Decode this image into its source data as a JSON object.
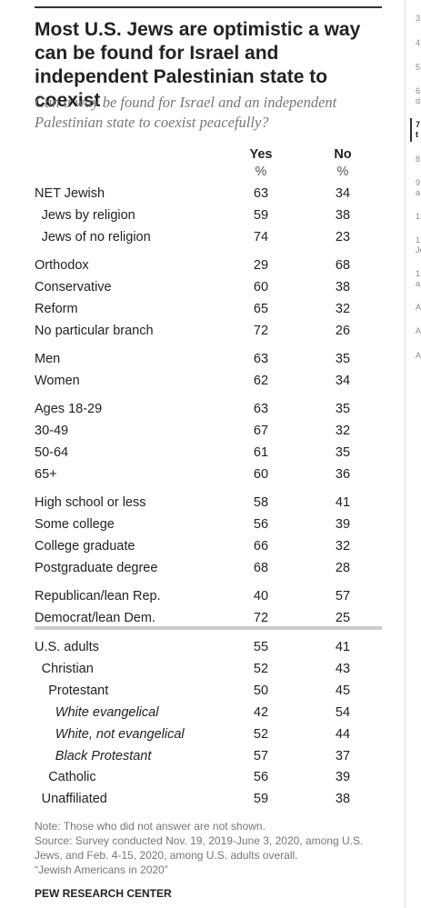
{
  "header": {
    "title": "Most U.S. Jews are optimistic a way can be found for Israel and independent Palestinian state to coexist",
    "subtitle": "Can a way be found for Israel and an independent Palestinian state to coexist peacefully?"
  },
  "table": {
    "columns": [
      {
        "name": "Yes",
        "unit": "%"
      },
      {
        "name": "No",
        "unit": "%"
      }
    ],
    "groups": [
      [
        {
          "label": "NET Jewish",
          "level": 0,
          "values": [
            63,
            34
          ]
        },
        {
          "label": "Jews by religion",
          "level": 1,
          "values": [
            59,
            38
          ]
        },
        {
          "label": "Jews of no religion",
          "level": 1,
          "values": [
            74,
            23
          ]
        }
      ],
      [
        {
          "label": "Orthodox",
          "level": 0,
          "values": [
            29,
            68
          ]
        },
        {
          "label": "Conservative",
          "level": 0,
          "values": [
            60,
            38
          ]
        },
        {
          "label": "Reform",
          "level": 0,
          "values": [
            65,
            32
          ]
        },
        {
          "label": "No particular branch",
          "level": 0,
          "values": [
            72,
            26
          ]
        }
      ],
      [
        {
          "label": "Men",
          "level": 0,
          "values": [
            63,
            35
          ]
        },
        {
          "label": "Women",
          "level": 0,
          "values": [
            62,
            34
          ]
        }
      ],
      [
        {
          "label": "Ages 18-29",
          "level": 0,
          "values": [
            63,
            35
          ]
        },
        {
          "label": "30-49",
          "level": 0,
          "values": [
            67,
            32
          ]
        },
        {
          "label": "50-64",
          "level": 0,
          "values": [
            61,
            35
          ]
        },
        {
          "label": "65+",
          "level": 0,
          "values": [
            60,
            36
          ]
        }
      ],
      [
        {
          "label": "High school or less",
          "level": 0,
          "values": [
            58,
            41
          ]
        },
        {
          "label": "Some college",
          "level": 0,
          "values": [
            56,
            39
          ]
        },
        {
          "label": "College graduate",
          "level": 0,
          "values": [
            66,
            32
          ]
        },
        {
          "label": "Postgraduate degree",
          "level": 0,
          "values": [
            68,
            28
          ]
        }
      ],
      [
        {
          "label": "Republican/lean Rep.",
          "level": 0,
          "values": [
            40,
            57
          ]
        },
        {
          "label": "Democrat/lean Dem.",
          "level": 0,
          "values": [
            72,
            25
          ]
        }
      ],
      [
        {
          "label": "U.S. adults",
          "level": 0,
          "values": [
            55,
            41
          ]
        },
        {
          "label": "Christian",
          "level": 1,
          "values": [
            52,
            43
          ]
        },
        {
          "label": "Protestant",
          "level": 2,
          "values": [
            50,
            45
          ]
        },
        {
          "label": "White evangelical",
          "level": 3,
          "values": [
            42,
            54
          ]
        },
        {
          "label": "White, not evangelical",
          "level": 3,
          "values": [
            52,
            44
          ]
        },
        {
          "label": "Black Protestant",
          "level": 3,
          "values": [
            57,
            37
          ]
        },
        {
          "label": "Catholic",
          "level": 2,
          "values": [
            56,
            39
          ]
        },
        {
          "label": "Unaffiliated",
          "level": 1,
          "values": [
            59,
            38
          ]
        }
      ]
    ],
    "divider_before_group": 6
  },
  "footer": {
    "note": "Note: Those who did not answer are not shown.",
    "source": "Source: Survey conducted Nov. 19, 2019-June 3, 2020, among U.S. Jews, and Feb. 4-15, 2020, among U.S. adults overall.",
    "report": "“Jewish Americans in 2020”",
    "credit": "PEW RESEARCH CENTER"
  },
  "sidebar": [
    {
      "lines": [
        "3"
      ]
    },
    {
      "lines": [
        "4"
      ]
    },
    {
      "lines": [
        "5"
      ]
    },
    {
      "lines": [
        "6",
        "d"
      ]
    },
    {
      "lines": [
        "7",
        "t"
      ],
      "active": true
    },
    {
      "lines": [
        "8"
      ]
    },
    {
      "lines": [
        "9",
        "a"
      ]
    },
    {
      "lines": [
        "1"
      ]
    },
    {
      "lines": [
        "1",
        "Je"
      ]
    },
    {
      "lines": [
        "1",
        "a"
      ]
    },
    {
      "lines": [
        "A"
      ]
    },
    {
      "lines": [
        "A"
      ]
    },
    {
      "lines": [
        "A"
      ]
    }
  ]
}
